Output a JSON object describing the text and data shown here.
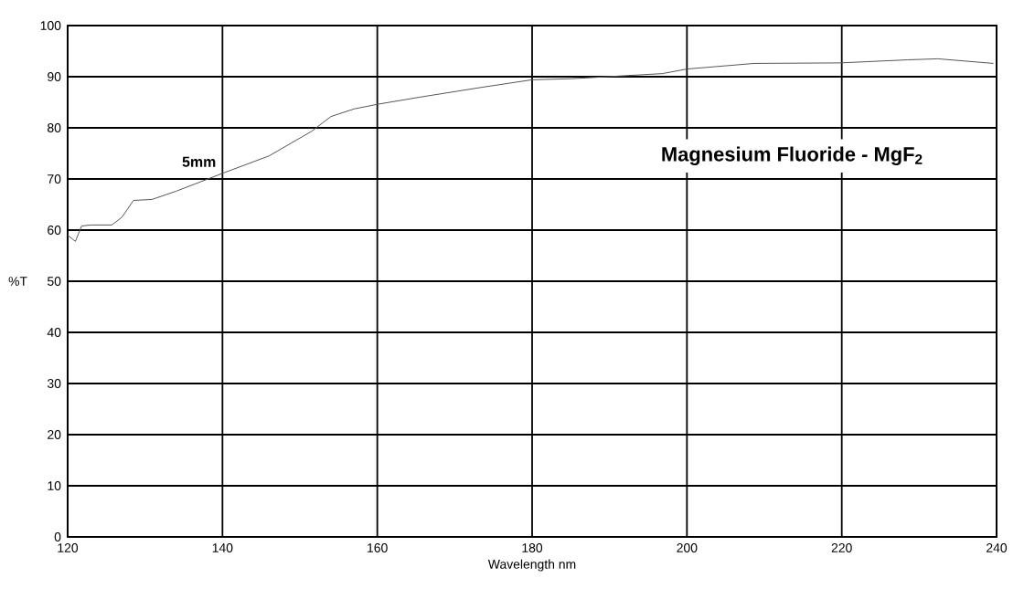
{
  "chart_data": {
    "type": "line",
    "title": "Magnesium Fluoride - MgF$_{2}$",
    "xlabel": "Wavelength nm",
    "ylabel": "%T",
    "xlim": [
      120,
      240
    ],
    "ylim": [
      0,
      100
    ],
    "xticks": [
      120,
      140,
      160,
      180,
      200,
      220,
      240
    ],
    "yticks": [
      0,
      10,
      20,
      30,
      40,
      50,
      60,
      70,
      80,
      90,
      100
    ],
    "grid": true,
    "marker": "none",
    "line_style": "solid",
    "series": [
      {
        "name": "5mm",
        "color": "#555555",
        "x": [
          120,
          121,
          121.8,
          123,
          125.7,
          127,
          128.5,
          130.9,
          134,
          140,
          146,
          151.5,
          154,
          157,
          160,
          165.5,
          173.4,
          180,
          185,
          196.8,
          200,
          208.7,
          219.8,
          228.5,
          232.4,
          239.6
        ],
        "values": [
          59.0,
          57.8,
          60.8,
          61.0,
          61.0,
          62.5,
          65.8,
          66.0,
          67.6,
          71.1,
          74.5,
          79.3,
          82.2,
          83.7,
          84.6,
          86.0,
          87.9,
          89.4,
          89.6,
          90.6,
          91.5,
          92.6,
          92.7,
          93.3,
          93.5,
          92.6
        ]
      }
    ]
  }
}
